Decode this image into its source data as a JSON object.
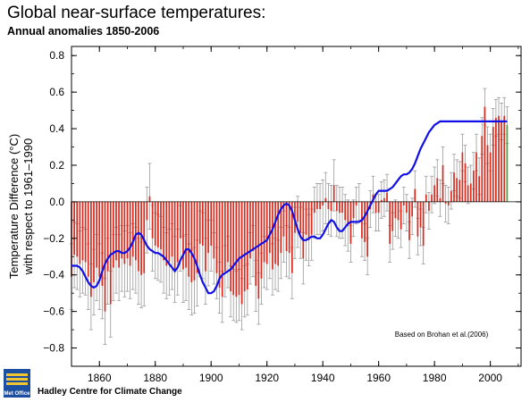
{
  "header": {
    "title": "Global near-surface temperatures:",
    "subtitle": "Annual anomalies 1850-2006"
  },
  "footer": {
    "credit": "Hadley Centre for Climate Change",
    "logo_text": "Met Office"
  },
  "colors": {
    "bars": "#d62c20",
    "recent_bar": "#3da63a",
    "smooth_line": "#1010e6",
    "error_bars": "#9a9a9a"
  },
  "chart_data": {
    "type": "bar",
    "title": "Global near-surface temperatures:",
    "subtitle": "Annual anomalies 1850-2006",
    "xlabel": "",
    "ylabel": "Temperature Difference (°C) with respect to 1961–1990",
    "ylabel_line1": "Temperature Difference (°C)",
    "ylabel_line2": "with respect to 1961–1990",
    "xlim": [
      1850,
      2011
    ],
    "ylim": [
      -0.9,
      0.85
    ],
    "x_ticks": [
      1860,
      1880,
      1900,
      1920,
      1940,
      1960,
      1980,
      2000
    ],
    "x_tick_labels": [
      "1860",
      "1880",
      "1900",
      "1920",
      "1940",
      "1960",
      "1980",
      "2000"
    ],
    "y_ticks": [
      -0.8,
      -0.6,
      -0.4,
      -0.2,
      0.0,
      0.2,
      0.4,
      0.6,
      0.8
    ],
    "y_tick_labels": [
      "−0.8",
      "−0.6",
      "−0.4",
      "−0.2",
      "0.0",
      "0.2",
      "0.4",
      "0.6",
      "0.8"
    ],
    "grid": false,
    "annotation": "Based on Brohan et al.(2006)",
    "years": [
      1850,
      1851,
      1852,
      1853,
      1854,
      1855,
      1856,
      1857,
      1858,
      1859,
      1860,
      1861,
      1862,
      1863,
      1864,
      1865,
      1866,
      1867,
      1868,
      1869,
      1870,
      1871,
      1872,
      1873,
      1874,
      1875,
      1876,
      1877,
      1878,
      1879,
      1880,
      1881,
      1882,
      1883,
      1884,
      1885,
      1886,
      1887,
      1888,
      1889,
      1890,
      1891,
      1892,
      1893,
      1894,
      1895,
      1896,
      1897,
      1898,
      1899,
      1900,
      1901,
      1902,
      1903,
      1904,
      1905,
      1906,
      1907,
      1908,
      1909,
      1910,
      1911,
      1912,
      1913,
      1914,
      1915,
      1916,
      1917,
      1918,
      1919,
      1920,
      1921,
      1922,
      1923,
      1924,
      1925,
      1926,
      1927,
      1928,
      1929,
      1930,
      1931,
      1932,
      1933,
      1934,
      1935,
      1936,
      1937,
      1938,
      1939,
      1940,
      1941,
      1942,
      1943,
      1944,
      1945,
      1946,
      1947,
      1948,
      1949,
      1950,
      1951,
      1952,
      1953,
      1954,
      1955,
      1956,
      1957,
      1958,
      1959,
      1960,
      1961,
      1962,
      1963,
      1964,
      1965,
      1966,
      1967,
      1968,
      1969,
      1970,
      1971,
      1972,
      1973,
      1974,
      1975,
      1976,
      1977,
      1978,
      1979,
      1980,
      1981,
      1982,
      1983,
      1984,
      1985,
      1986,
      1987,
      1988,
      1989,
      1990,
      1991,
      1992,
      1993,
      1994,
      1995,
      1996,
      1997,
      1998,
      1999,
      2000,
      2001,
      2002,
      2003,
      2004,
      2005,
      2006
    ],
    "values": [
      -0.41,
      -0.29,
      -0.3,
      -0.34,
      -0.32,
      -0.33,
      -0.41,
      -0.52,
      -0.44,
      -0.36,
      -0.41,
      -0.46,
      -0.6,
      -0.38,
      -0.56,
      -0.36,
      -0.32,
      -0.36,
      -0.31,
      -0.34,
      -0.31,
      -0.35,
      -0.3,
      -0.32,
      -0.38,
      -0.4,
      -0.39,
      -0.1,
      0.03,
      -0.2,
      -0.24,
      -0.25,
      -0.26,
      -0.32,
      -0.35,
      -0.33,
      -0.3,
      -0.37,
      -0.33,
      -0.2,
      -0.37,
      -0.36,
      -0.41,
      -0.44,
      -0.43,
      -0.39,
      -0.23,
      -0.24,
      -0.38,
      -0.28,
      -0.24,
      -0.31,
      -0.39,
      -0.47,
      -0.52,
      -0.38,
      -0.33,
      -0.49,
      -0.51,
      -0.52,
      -0.51,
      -0.56,
      -0.49,
      -0.48,
      -0.31,
      -0.27,
      -0.46,
      -0.53,
      -0.42,
      -0.33,
      -0.34,
      -0.28,
      -0.37,
      -0.34,
      -0.35,
      -0.28,
      -0.19,
      -0.27,
      -0.28,
      -0.39,
      -0.17,
      -0.11,
      -0.17,
      -0.31,
      -0.18,
      -0.21,
      -0.18,
      -0.06,
      -0.04,
      -0.04,
      -0.02,
      0.02,
      -0.04,
      -0.05,
      0.09,
      -0.05,
      -0.06,
      -0.06,
      -0.1,
      -0.13,
      -0.23,
      -0.09,
      -0.02,
      0.0,
      -0.2,
      -0.22,
      -0.3,
      -0.04,
      0.04,
      -0.06,
      -0.06,
      0.01,
      0.02,
      0.05,
      -0.23,
      -0.16,
      -0.09,
      -0.1,
      -0.15,
      -0.02,
      -0.06,
      -0.21,
      -0.08,
      0.07,
      -0.19,
      -0.14,
      -0.24,
      0.04,
      -0.05,
      0.04,
      0.09,
      0.13,
      0.02,
      0.2,
      -0.01,
      -0.02,
      0.06,
      0.16,
      0.13,
      0.12,
      0.27,
      0.21,
      0.09,
      0.1,
      0.17,
      0.27,
      0.14,
      0.36,
      0.52,
      0.31,
      0.27,
      0.41,
      0.46,
      0.47,
      0.44,
      0.47,
      0.42
    ],
    "smoothed": [
      -0.35,
      -0.35,
      -0.35,
      -0.36,
      -0.38,
      -0.41,
      -0.44,
      -0.46,
      -0.47,
      -0.46,
      -0.43,
      -0.38,
      -0.34,
      -0.31,
      -0.29,
      -0.28,
      -0.27,
      -0.27,
      -0.28,
      -0.28,
      -0.27,
      -0.25,
      -0.22,
      -0.18,
      -0.17,
      -0.18,
      -0.21,
      -0.24,
      -0.26,
      -0.27,
      -0.28,
      -0.28,
      -0.29,
      -0.3,
      -0.32,
      -0.34,
      -0.36,
      -0.38,
      -0.36,
      -0.32,
      -0.29,
      -0.26,
      -0.26,
      -0.28,
      -0.31,
      -0.35,
      -0.4,
      -0.44,
      -0.47,
      -0.5,
      -0.5,
      -0.49,
      -0.46,
      -0.42,
      -0.4,
      -0.39,
      -0.38,
      -0.37,
      -0.35,
      -0.33,
      -0.31,
      -0.3,
      -0.29,
      -0.28,
      -0.27,
      -0.26,
      -0.25,
      -0.24,
      -0.23,
      -0.22,
      -0.21,
      -0.18,
      -0.15,
      -0.11,
      -0.07,
      -0.04,
      -0.02,
      -0.01,
      -0.02,
      -0.05,
      -0.1,
      -0.15,
      -0.19,
      -0.21,
      -0.21,
      -0.2,
      -0.19,
      -0.19,
      -0.2,
      -0.2,
      -0.18,
      -0.15,
      -0.12,
      -0.1,
      -0.11,
      -0.14,
      -0.16,
      -0.16,
      -0.14,
      -0.12,
      -0.11,
      -0.11,
      -0.11,
      -0.11,
      -0.1,
      -0.08,
      -0.05,
      -0.02,
      0.01,
      0.04,
      0.06,
      0.06,
      0.06,
      0.06,
      0.07,
      0.08,
      0.1,
      0.12,
      0.14,
      0.15,
      0.15,
      0.16,
      0.18,
      0.21,
      0.25,
      0.29,
      0.32,
      0.35,
      0.38,
      0.4,
      0.42,
      0.43,
      0.44,
      0.44,
      0.44,
      0.44,
      0.44,
      0.44,
      0.44,
      0.44,
      0.44,
      0.44,
      0.44,
      0.44,
      0.44,
      0.44,
      0.44,
      0.44,
      0.44,
      0.44,
      0.44,
      0.44,
      0.44,
      0.44,
      0.44,
      0.44,
      0.44
    ],
    "series": [
      {
        "name": "",
        "type": "bar"
      },
      {
        "name": "",
        "type": "smoothed-line"
      }
    ]
  }
}
